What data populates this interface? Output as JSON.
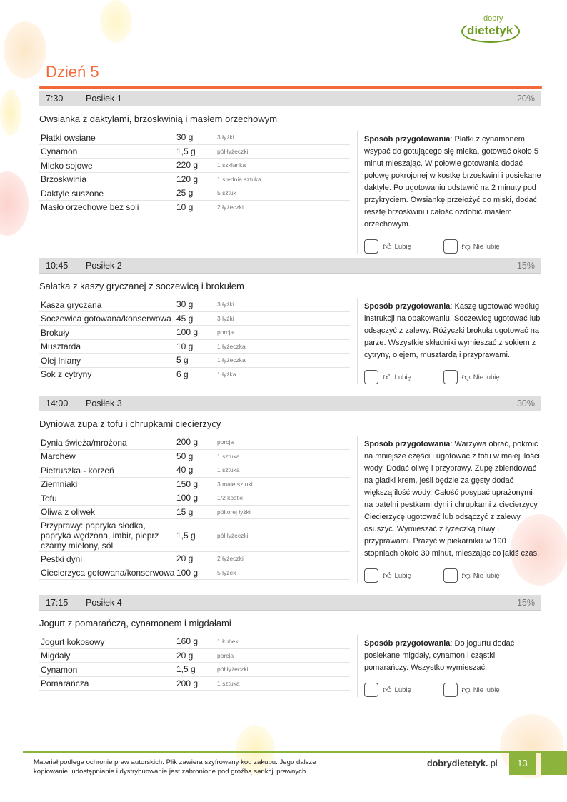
{
  "logo": {
    "line1": "dobry",
    "line2": "dietetyk"
  },
  "day_title": "Dzień 5",
  "colors": {
    "accent": "#f26a3a",
    "brand": "#8cb43c"
  },
  "meals": [
    {
      "time": "7:30",
      "name": "Posiłek 1",
      "percent": "20%",
      "title": "Owsianka z daktylami, brzoskwinią i masłem orzechowym",
      "ingredients": [
        [
          "Płatki owsiane",
          "30 g",
          "3 łyżki"
        ],
        [
          "Cynamon",
          "1,5 g",
          "pół łyżeczki"
        ],
        [
          "Mleko sojowe",
          "220 g",
          "1 szklanka"
        ],
        [
          "Brzoskwinia",
          "120 g",
          "1 średnia sztuka"
        ],
        [
          "Daktyle suszone",
          "25 g",
          "5 sztuk"
        ],
        [
          "Masło orzechowe bez soli",
          "10 g",
          "2 łyżeczki"
        ]
      ],
      "recipe_label": "Sposób przygotowania",
      "recipe": ": Płatki z cynamonem wsypać do gotującego się mleka, gotować około 5 minut mieszając. W połowie gotowania dodać połowę pokrojonej w kostkę brzoskwini i posiekane daktyle. Po ugotowaniu odstawić na 2 minuty pod przykryciem. Owsiankę przełożyć do miski, dodać resztę brzoskwini i całość ozdobić masłem orzechowym."
    },
    {
      "time": "10:45",
      "name": "Posiłek 2",
      "percent": "15%",
      "title": "Sałatka z kaszy gryczanej z soczewicą i brokułem",
      "ingredients": [
        [
          "Kasza gryczana",
          "30 g",
          "3 łyżki"
        ],
        [
          "Soczewica gotowana/konserwowa",
          "45 g",
          "3 łyżki"
        ],
        [
          "Brokuły",
          "100 g",
          "porcja"
        ],
        [
          "Musztarda",
          "10 g",
          "1 łyżeczka"
        ],
        [
          "Olej lniany",
          "5 g",
          "1 łyżeczka"
        ],
        [
          "Sok z cytryny",
          "6 g",
          "1 łyżka"
        ]
      ],
      "recipe_label": "Sposób przygotowania",
      "recipe": ": Kaszę ugotować według instrukcji na opakowaniu. Soczewicę ugotować lub odsączyć z zalewy. Różyczki brokuła ugotować na parze. Wszystkie składniki wymieszać z sokiem z cytryny, olejem, musztardą i przyprawami."
    },
    {
      "time": "14:00",
      "name": "Posiłek 3",
      "percent": "30%",
      "title": "Dyniowa zupa z tofu i chrupkami ciecierzycy",
      "ingredients": [
        [
          "Dynia świeża/mrożona",
          "200 g",
          "porcja"
        ],
        [
          "Marchew",
          "50 g",
          "1 sztuka"
        ],
        [
          "Pietruszka - korzeń",
          "40 g",
          "1 sztuka"
        ],
        [
          "Ziemniaki",
          "150 g",
          "3 małe sztuki"
        ],
        [
          "Tofu",
          "100 g",
          "1/2 kostki"
        ],
        [
          "Oliwa z oliwek",
          "15 g",
          "półtorej łyżki"
        ],
        [
          "Przyprawy: papryka słodka, papryka wędzona, imbir, pieprz czarny mielony, sól",
          "1,5 g",
          "pół łyżeczki"
        ],
        [
          "Pestki dyni",
          "20 g",
          "2 łyżeczki"
        ],
        [
          "Ciecierzyca gotowana/konserwowa",
          "100 g",
          "5 łyżek"
        ]
      ],
      "recipe_label": "Sposób przygotowania",
      "recipe": ": Warzywa obrać, pokroić na mniejsze części i ugotować z tofu w małej ilości wody. Dodać oliwę i przyprawy. Zupę zblendować na gładki krem, jeśli będzie za gęsty dodać większą ilość wody. Całość posypać uprażonymi na patelni pestkami dyni i chrupkami z ciecierzycy. Ciecierzycę ugotować lub odsączyć z zalewy, osuszyć. Wymieszać z łyżeczką oliwy i przyprawami. Prażyć w piekarniku w 190 stopniach około 30 minut, mieszając co jakiś czas."
    },
    {
      "time": "17:15",
      "name": "Posiłek 4",
      "percent": "15%",
      "title": "Jogurt z pomarańczą, cynamonem i migdałami",
      "ingredients": [
        [
          "Jogurt kokosowy",
          "160 g",
          "1 kubek"
        ],
        [
          "Migdały",
          "20 g",
          "porcja"
        ],
        [
          "Cynamon",
          "1,5 g",
          "pół łyżeczki"
        ],
        [
          "Pomarańcza",
          "200 g",
          "1 sztuka"
        ]
      ],
      "recipe_label": "Sposób przygotowania",
      "recipe": ": Do jogurtu dodać posiekane migdały, cynamon i cząstki pomarańczy. Wszystko wymieszać."
    }
  ],
  "like_label": "Lubię",
  "dislike_label": "Nie lubię",
  "footer": {
    "line1": "Materiał podlega ochronie praw autorskich. Plik zawiera szyfrowany kod zakupu. Jego dalsze",
    "line2": "kopiowanie, udostępnianie i dystrybuowanie jest zabronione pod groźbą sankcji prawnych.",
    "site": "dobrydietetyk.",
    "site_suffix": " pl",
    "page": "13"
  }
}
